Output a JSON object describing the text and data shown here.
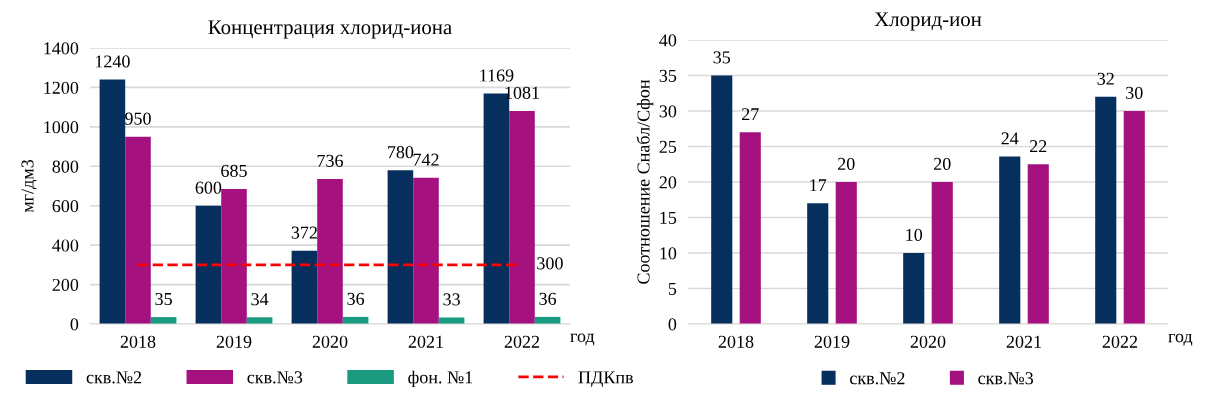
{
  "chart_data": [
    {
      "type": "bar",
      "title": "Концентрация хлорид-иона",
      "ylabel": "мг/дм3",
      "xlabel": "год",
      "categories": [
        "2018",
        "2019",
        "2020",
        "2021",
        "2022"
      ],
      "series": [
        {
          "name": "скв.№2",
          "color": "#062f5e",
          "values": [
            1240,
            600,
            372,
            780,
            1169
          ]
        },
        {
          "name": "скв.№3",
          "color": "#a5117f",
          "values": [
            950,
            685,
            736,
            742,
            1081
          ]
        },
        {
          "name": "фон. №1",
          "color": "#1a9a7e",
          "values": [
            35,
            34,
            36,
            33,
            36
          ]
        }
      ],
      "data_labels": true,
      "ylim": [
        0,
        1400
      ],
      "yticks": [
        0,
        200,
        400,
        600,
        800,
        1000,
        1200,
        1400
      ],
      "grid": "y",
      "legend": "bottom",
      "ref_lines": [
        {
          "axis": "y",
          "value": 300,
          "label": "ПДКпв",
          "color": "#ff0000",
          "line_style": "dashed"
        }
      ],
      "annotations": [
        {
          "text": "300",
          "x": "2022",
          "y": 300
        }
      ]
    },
    {
      "type": "bar",
      "title": "Хлорид-ион",
      "ylabel": "Соотношение Снабл/Сфон",
      "xlabel": "год",
      "categories": [
        "2018",
        "2019",
        "2020",
        "2021",
        "2022"
      ],
      "series": [
        {
          "name": "скв.№2",
          "color": "#062f5e",
          "values": [
            35,
            17,
            10,
            23.6,
            32
          ],
          "value_labels": [
            "35",
            "17",
            "10",
            "24",
            "32"
          ]
        },
        {
          "name": "скв.№3",
          "color": "#a5117f",
          "values": [
            27,
            20,
            20,
            22.5,
            30
          ],
          "value_labels": [
            "27",
            "20",
            "20",
            "22",
            "30"
          ]
        }
      ],
      "ylim": [
        0,
        40
      ],
      "yticks": [
        0,
        5,
        10,
        15,
        20,
        25,
        30,
        35,
        40
      ],
      "grid": "y",
      "legend": "bottom"
    }
  ]
}
